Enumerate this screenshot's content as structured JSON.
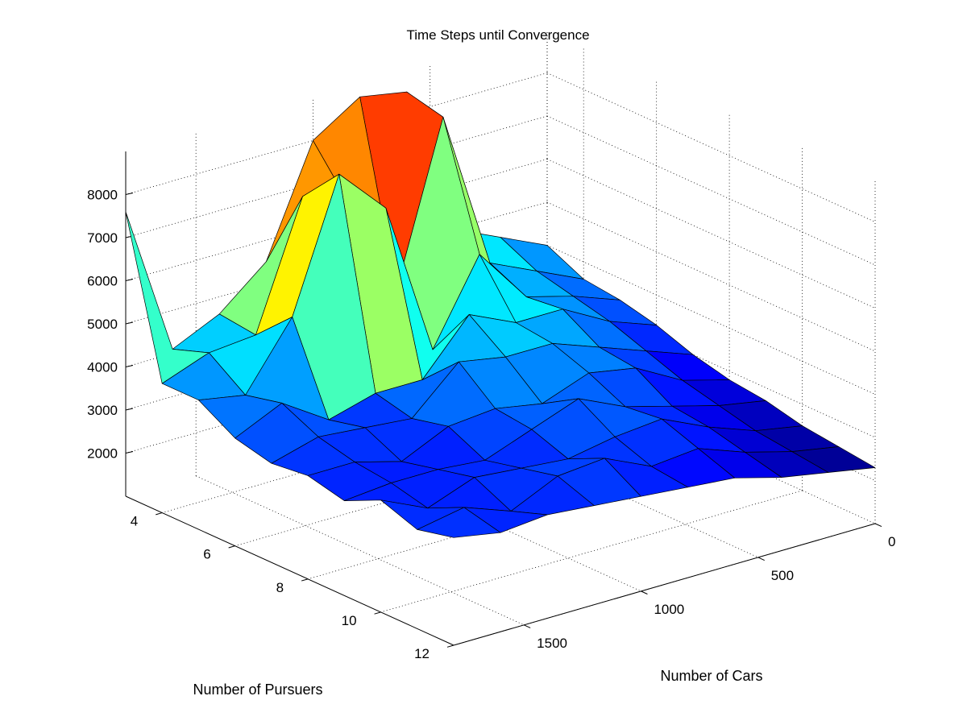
{
  "chart_data": {
    "type": "surface",
    "title": "Time Steps until Convergence",
    "xlabel": "Number of Pursuers",
    "ylabel": "Number of Cars",
    "zlabel": "",
    "x": [
      3,
      4,
      5,
      6,
      7,
      8,
      9,
      10,
      11,
      12
    ],
    "y": [
      0,
      200,
      400,
      600,
      800,
      1000,
      1200,
      1400,
      1600,
      1800
    ],
    "xlim": [
      3,
      12
    ],
    "ylim": [
      0,
      1800
    ],
    "zlim": [
      1000,
      9000
    ],
    "x_ticks": [
      "4",
      "6",
      "8",
      "10",
      "12"
    ],
    "y_ticks": [
      "0",
      "500",
      "1000",
      "1500"
    ],
    "z_ticks": [
      "2000",
      "3000",
      "4000",
      "5000",
      "6000",
      "7000",
      "8000"
    ],
    "colormap": "jet",
    "grid": true,
    "note_rows": "z[i][j]: i indexes Number of Cars (y), j indexes Number of Pursuers (x)",
    "z": [
      [
        4000,
        3600,
        3500,
        3300,
        3000,
        2800,
        2700,
        2500,
        2400,
        2300
      ],
      [
        4500,
        4100,
        3900,
        3700,
        3400,
        3100,
        2900,
        2700,
        2600,
        2500
      ],
      [
        5000,
        4600,
        4200,
        4300,
        3800,
        3700,
        3200,
        3100,
        2900,
        2700
      ],
      [
        8500,
        8300,
        5500,
        4300,
        4200,
        3900,
        3500,
        3600,
        3300,
        3000
      ],
      [
        8700,
        4600,
        3600,
        4800,
        4200,
        3500,
        4000,
        3500,
        3200,
        3100
      ],
      [
        8000,
        6900,
        7200,
        3600,
        4400,
        3700,
        3600,
        3300,
        3700,
        3200
      ],
      [
        5500,
        7400,
        8300,
        3600,
        3400,
        3600,
        3200,
        3400,
        3600,
        3300
      ],
      [
        4600,
        4500,
        5300,
        3300,
        3500,
        3100,
        3300,
        3500,
        3100,
        3400
      ],
      [
        4100,
        4400,
        3800,
        4000,
        3600,
        3400,
        3300,
        3100,
        3500,
        3300
      ],
      [
        7600,
        4000,
        4000,
        3500,
        3300,
        3400,
        3200,
        3600,
        3300,
        3500
      ]
    ]
  }
}
